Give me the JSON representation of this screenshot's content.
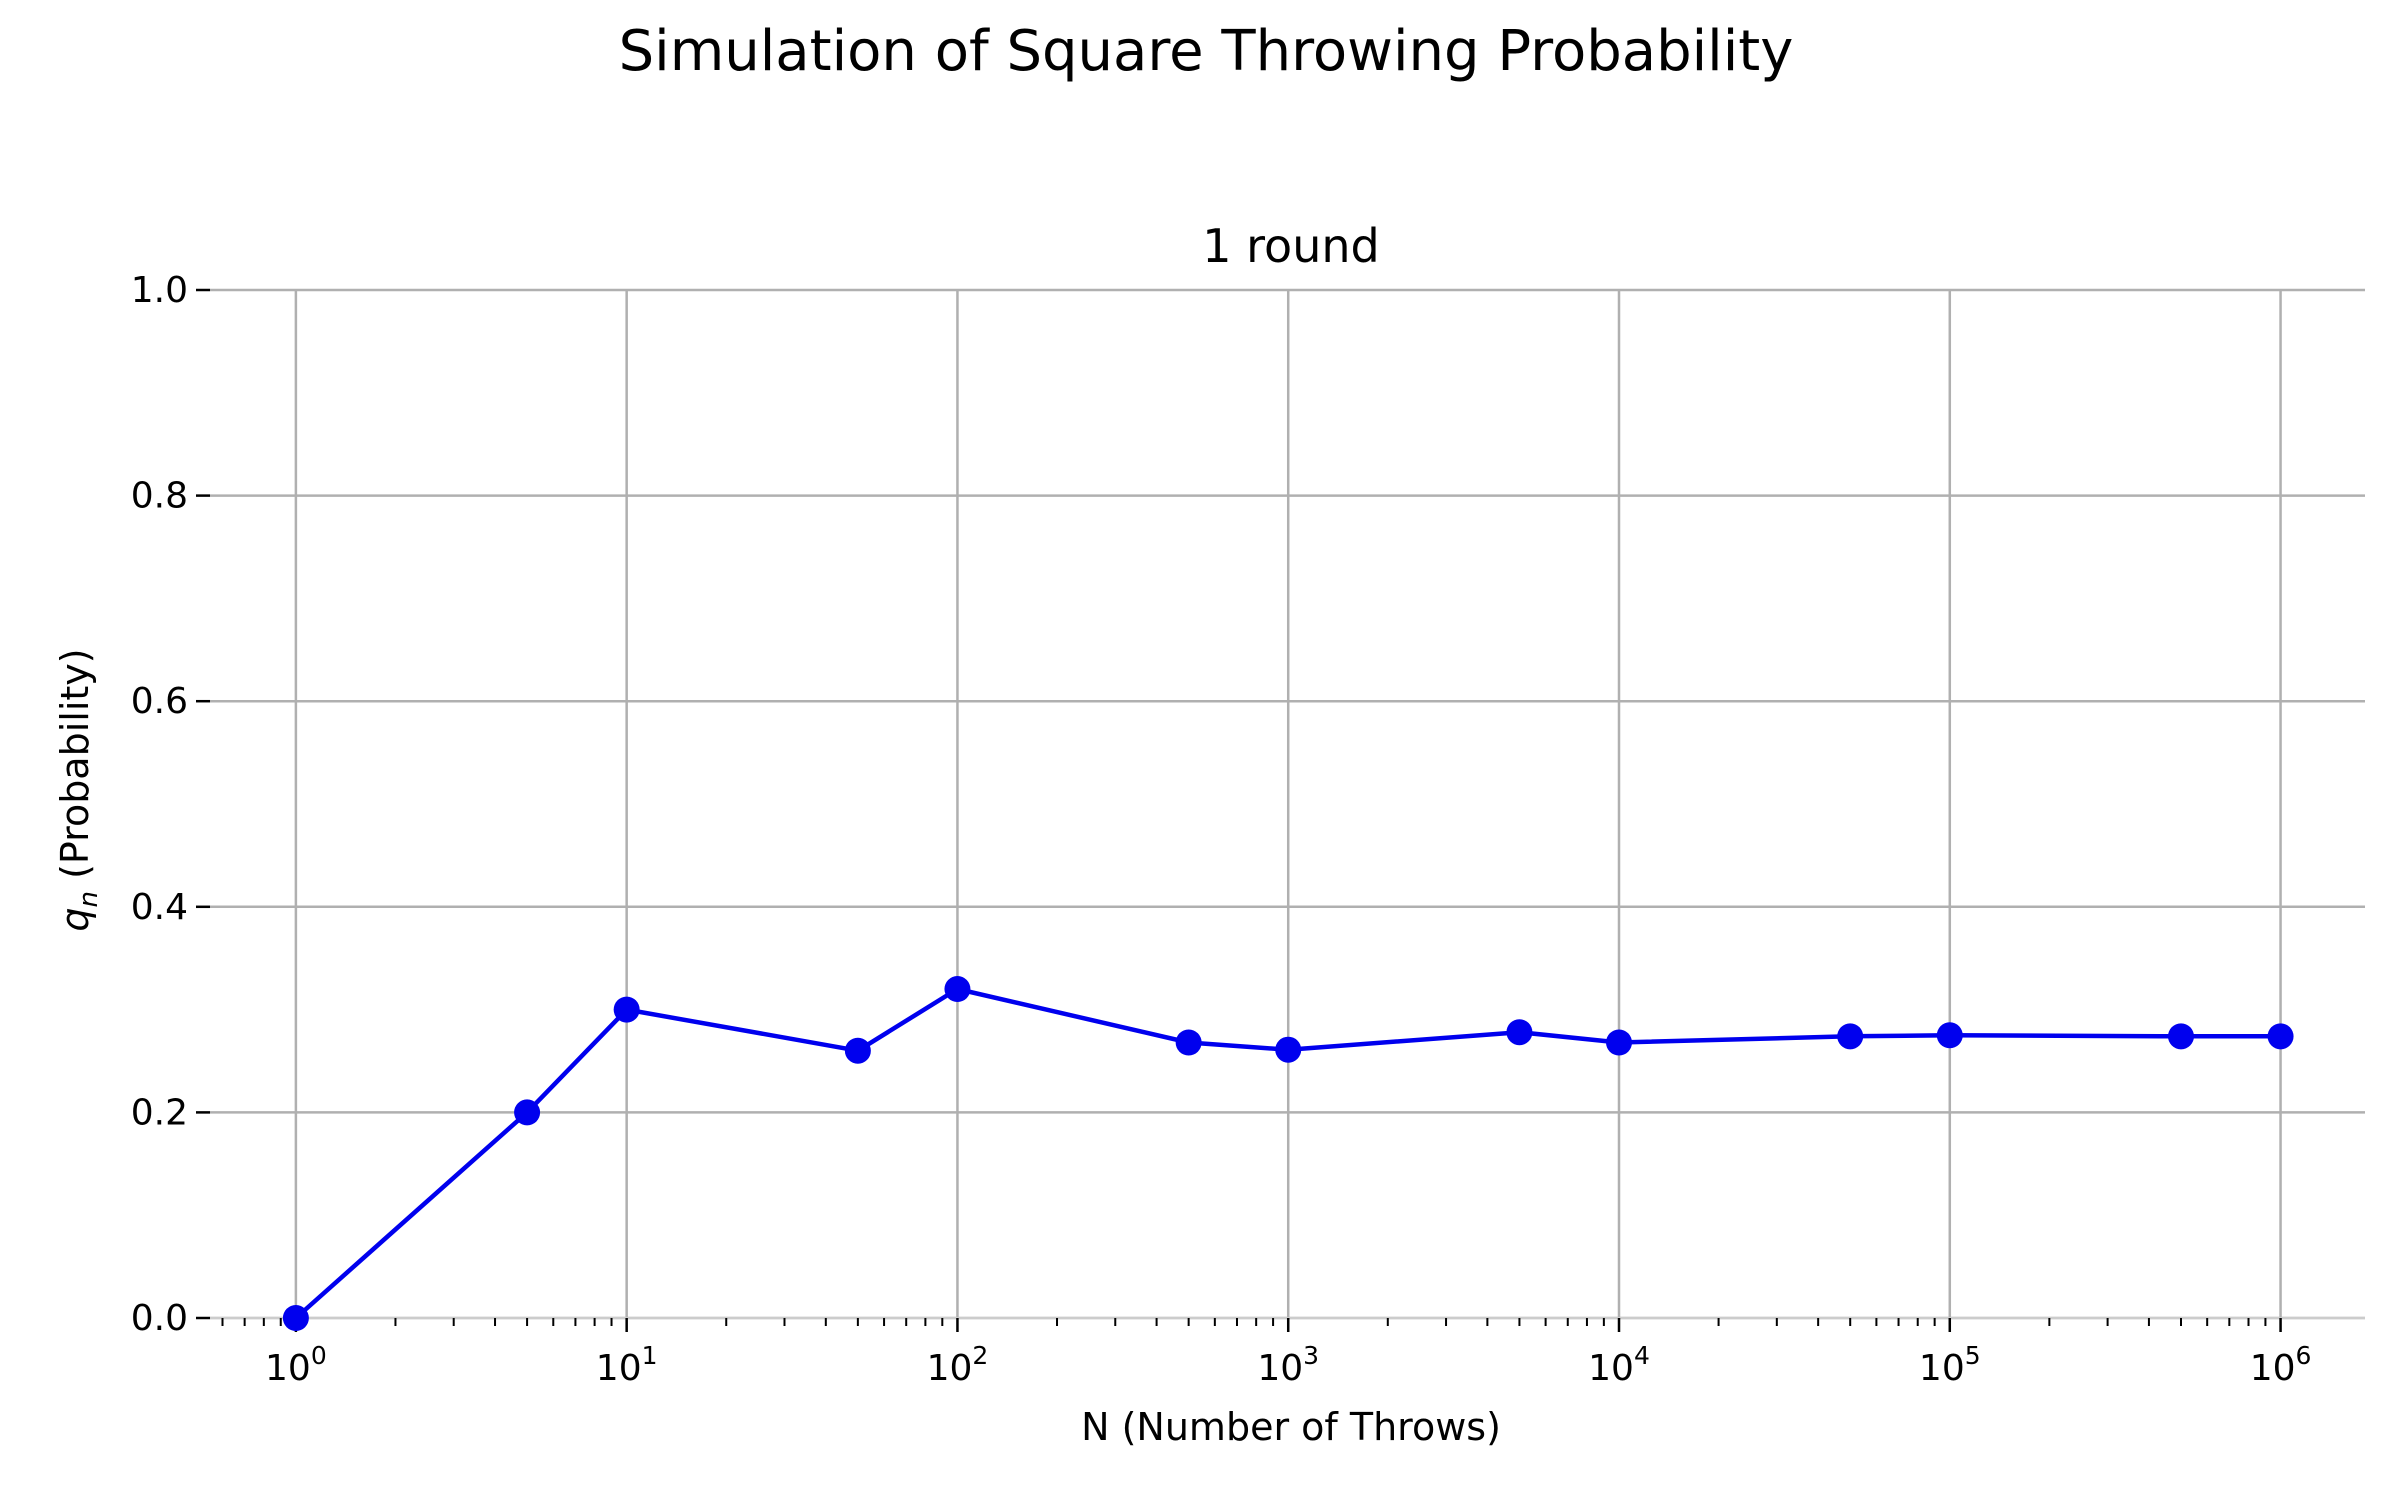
{
  "suptitle": "Simulation of Square Throwing Probability",
  "chart_data": {
    "type": "line",
    "title": "1 round",
    "xlabel": "N (Number of Throws)",
    "ylabel_main": "q",
    "ylabel_sub": "n",
    "ylabel_rest": " (Probability)",
    "xscale": "log",
    "xlim": [
      0.55,
      1800000
    ],
    "ylim": [
      0,
      1
    ],
    "grid": true,
    "x": [
      1,
      5,
      10,
      50,
      100,
      500,
      1000,
      5000,
      10000,
      50000,
      100000,
      500000,
      1000000
    ],
    "y": [
      0.0,
      0.2,
      0.3,
      0.26,
      0.32,
      0.268,
      0.261,
      0.278,
      0.268,
      0.274,
      0.275,
      0.274,
      0.274
    ],
    "color": "#0000ee",
    "x_ticks": [
      {
        "value": 1,
        "base": "10",
        "exp": "0"
      },
      {
        "value": 10,
        "base": "10",
        "exp": "1"
      },
      {
        "value": 100,
        "base": "10",
        "exp": "2"
      },
      {
        "value": 1000,
        "base": "10",
        "exp": "3"
      },
      {
        "value": 10000,
        "base": "10",
        "exp": "4"
      },
      {
        "value": 100000,
        "base": "10",
        "exp": "5"
      },
      {
        "value": 1000000,
        "base": "10",
        "exp": "6"
      }
    ],
    "y_ticks": [
      {
        "value": 0.0,
        "label": "0.0"
      },
      {
        "value": 0.2,
        "label": "0.2"
      },
      {
        "value": 0.4,
        "label": "0.4"
      },
      {
        "value": 0.6,
        "label": "0.6"
      },
      {
        "value": 0.8,
        "label": "0.8"
      },
      {
        "value": 1.0,
        "label": "1.0"
      }
    ]
  }
}
